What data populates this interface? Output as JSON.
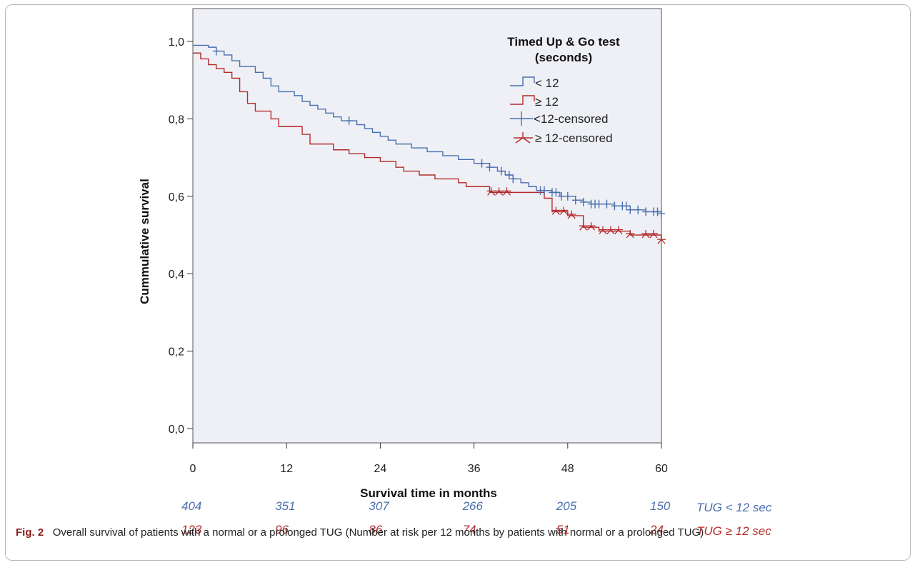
{
  "chart_data": {
    "type": "line",
    "title": "",
    "xlabel": "Survival time in months",
    "ylabel": "Cummulative survival",
    "xlim": [
      0,
      60
    ],
    "ylim": [
      0,
      1
    ],
    "x_ticks": [
      0,
      12,
      24,
      36,
      48,
      60
    ],
    "x_tick_labels": [
      "0",
      "12",
      "24",
      "36",
      "48",
      "60"
    ],
    "y_ticks": [
      0,
      0.2,
      0.4,
      0.6,
      0.8,
      1.0
    ],
    "y_tick_labels": [
      "0,0",
      "0,2",
      "0,4",
      "0,6",
      "0,8",
      "1,0"
    ],
    "legend": {
      "title_line1": "Timed Up & Go test",
      "title_line2": "(seconds)",
      "position": "top-right",
      "entries": [
        "< 12",
        "≥ 12",
        "<12-censored",
        "≥ 12-censored"
      ]
    },
    "series": [
      {
        "name": "< 12",
        "color": "#4a6fae",
        "steps": [
          [
            0,
            0.99
          ],
          [
            2,
            0.985
          ],
          [
            3,
            0.975
          ],
          [
            4,
            0.965
          ],
          [
            5,
            0.95
          ],
          [
            6,
            0.935
          ],
          [
            8,
            0.92
          ],
          [
            9,
            0.905
          ],
          [
            10,
            0.885
          ],
          [
            11,
            0.87
          ],
          [
            13,
            0.86
          ],
          [
            14,
            0.845
          ],
          [
            15,
            0.835
          ],
          [
            16,
            0.825
          ],
          [
            17,
            0.815
          ],
          [
            18,
            0.805
          ],
          [
            19,
            0.795
          ],
          [
            21,
            0.785
          ],
          [
            22,
            0.775
          ],
          [
            23,
            0.765
          ],
          [
            24,
            0.755
          ],
          [
            25,
            0.745
          ],
          [
            26,
            0.735
          ],
          [
            28,
            0.725
          ],
          [
            30,
            0.715
          ],
          [
            32,
            0.705
          ],
          [
            34,
            0.695
          ],
          [
            36,
            0.685
          ],
          [
            38,
            0.675
          ],
          [
            39,
            0.665
          ],
          [
            40,
            0.655
          ],
          [
            41,
            0.645
          ],
          [
            42,
            0.635
          ],
          [
            43,
            0.625
          ],
          [
            44,
            0.615
          ],
          [
            46,
            0.61
          ],
          [
            47,
            0.6
          ],
          [
            49,
            0.59
          ],
          [
            50,
            0.585
          ],
          [
            51,
            0.58
          ],
          [
            54,
            0.575
          ],
          [
            56,
            0.565
          ],
          [
            58,
            0.56
          ],
          [
            60,
            0.555
          ]
        ],
        "censored": [
          3,
          20,
          37,
          38,
          39.5,
          40.5,
          41,
          44.5,
          45,
          46,
          46.5,
          47.2,
          48,
          49,
          50,
          51,
          51.5,
          52,
          53,
          54,
          55,
          55.5,
          56,
          57,
          58,
          59,
          59.5,
          60
        ]
      },
      {
        "name": "≥ 12",
        "color": "#b42a2a",
        "steps": [
          [
            0,
            0.97
          ],
          [
            1,
            0.955
          ],
          [
            2,
            0.94
          ],
          [
            3,
            0.93
          ],
          [
            4,
            0.92
          ],
          [
            5,
            0.905
          ],
          [
            6,
            0.87
          ],
          [
            7,
            0.84
          ],
          [
            8,
            0.82
          ],
          [
            10,
            0.8
          ],
          [
            11,
            0.78
          ],
          [
            14,
            0.76
          ],
          [
            15,
            0.735
          ],
          [
            18,
            0.72
          ],
          [
            20,
            0.71
          ],
          [
            22,
            0.7
          ],
          [
            24,
            0.69
          ],
          [
            26,
            0.675
          ],
          [
            27,
            0.665
          ],
          [
            29,
            0.655
          ],
          [
            31,
            0.645
          ],
          [
            34,
            0.635
          ],
          [
            35,
            0.625
          ],
          [
            38,
            0.61
          ],
          [
            45,
            0.595
          ],
          [
            46,
            0.56
          ],
          [
            48,
            0.55
          ],
          [
            50,
            0.52
          ],
          [
            51,
            0.52
          ],
          [
            52,
            0.51
          ],
          [
            56,
            0.5
          ],
          [
            58,
            0.5
          ],
          [
            60,
            0.485
          ]
        ],
        "censored": [
          38.2,
          39.2,
          40.2,
          46.5,
          47.5,
          48.5,
          50,
          51,
          52.5,
          53.5,
          54.5,
          56,
          58,
          59,
          60
        ]
      }
    ],
    "number_at_risk": {
      "times": [
        0,
        12,
        24,
        36,
        48,
        60
      ],
      "groups": [
        {
          "label": "TUG < 12 sec",
          "values": [
            "404",
            "351",
            "307",
            "266",
            "205",
            "150"
          ]
        },
        {
          "label": "TUG ≥ 12 sec",
          "values": [
            "123",
            "96",
            "86",
            "74",
            "51",
            "24"
          ]
        }
      ]
    }
  },
  "caption": {
    "fig_label": "Fig. 2",
    "text": "Overall survival of patients with a normal or a prolonged TUG (Number at risk per 12 months by patients with normal or a prolonged TUG)"
  }
}
